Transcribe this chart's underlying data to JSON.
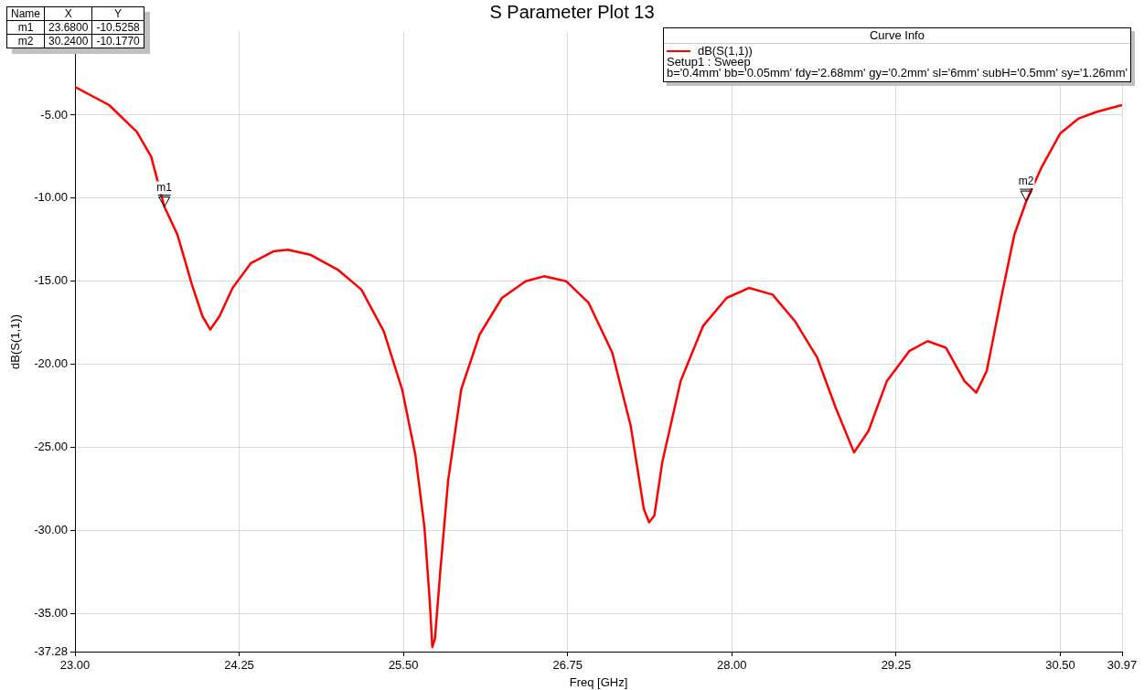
{
  "chart_data": {
    "type": "line",
    "title": "S Parameter Plot 13",
    "xlabel": "Freq [GHz]",
    "ylabel": "dB(S(1,1))",
    "legend_title": "Curve Info",
    "legend": "top right",
    "grid": true,
    "marker": "none",
    "line_style": "solid",
    "xlim": [
      23,
      30.97
    ],
    "ylim": [
      -37.28,
      0
    ],
    "xticks": [
      {
        "value": 23,
        "label": "23.00"
      },
      {
        "value": 24.25,
        "label": "24.25"
      },
      {
        "value": 25.5,
        "label": "25.50"
      },
      {
        "value": 26.75,
        "label": "26.75"
      },
      {
        "value": 28,
        "label": "28.00"
      },
      {
        "value": 29.25,
        "label": "29.25"
      },
      {
        "value": 30.5,
        "label": "30.50"
      },
      {
        "value": 30.97,
        "label": "30.97"
      }
    ],
    "yticks": [
      {
        "value": -37.28,
        "label": "-37.28"
      },
      {
        "value": -35,
        "label": "-35.00"
      },
      {
        "value": -30,
        "label": "-30.00"
      },
      {
        "value": -25,
        "label": "-25.00"
      },
      {
        "value": -20,
        "label": "-20.00"
      },
      {
        "value": -15,
        "label": "-15.00"
      },
      {
        "value": -10,
        "label": "-10.00"
      },
      {
        "value": -5,
        "label": "-5.00"
      }
    ],
    "series": [
      {
        "name": "dB(S(1,1))",
        "color": "#ff0000",
        "x": [
          23,
          23.26,
          23.47,
          23.58,
          23.68,
          23.78,
          23.89,
          23.97,
          24.03,
          24.1,
          24.2,
          24.34,
          24.51,
          24.62,
          24.79,
          25.0,
          25.18,
          25.35,
          25.49,
          25.59,
          25.66,
          25.7,
          25.72,
          25.74,
          25.78,
          25.84,
          25.94,
          26.08,
          26.25,
          26.43,
          26.57,
          26.74,
          26.91,
          27.09,
          27.23,
          27.33,
          27.37,
          27.41,
          27.47,
          27.61,
          27.78,
          27.96,
          28.13,
          28.31,
          28.48,
          28.65,
          28.79,
          28.93,
          29.04,
          29.18,
          29.35,
          29.49,
          29.63,
          29.77,
          29.86,
          29.94,
          30.05,
          30.15,
          30.24,
          30.36,
          30.5,
          30.64,
          30.78,
          30.97
        ],
        "values": [
          -3.3,
          -4.4,
          -6.0,
          -7.5,
          -10.5,
          -12.2,
          -15.2,
          -17.1,
          -17.9,
          -17.1,
          -15.4,
          -13.9,
          -13.2,
          -13.1,
          -13.4,
          -14.3,
          -15.5,
          -18.0,
          -21.5,
          -25.4,
          -29.8,
          -34.2,
          -37.0,
          -36.5,
          -32.5,
          -27.0,
          -21.5,
          -18.2,
          -16.0,
          -15.0,
          -14.7,
          -15.0,
          -16.3,
          -19.3,
          -23.7,
          -28.7,
          -29.5,
          -29.1,
          -25.9,
          -21.0,
          -17.7,
          -16.0,
          -15.4,
          -15.8,
          -17.4,
          -19.6,
          -22.6,
          -25.3,
          -24.0,
          -21.0,
          -19.2,
          -18.6,
          -19.0,
          -21.0,
          -21.7,
          -20.4,
          -16.0,
          -12.2,
          -10.2,
          -8.1,
          -6.1,
          -5.2,
          -4.8,
          -4.4
        ]
      }
    ],
    "annotations": [
      {
        "text": "m1",
        "x": 23.68,
        "y": -10.5258
      },
      {
        "text": "m2",
        "x": 30.24,
        "y": -10.177
      },
      "Name",
      "X",
      "Y",
      "m1",
      "23.6800",
      "-10.5258",
      "m2",
      "30.2400",
      "-10.1770",
      "Setup1 : Sweep",
      "b='0.4mm' bb='0.05mm' fdy='2.68mm' gy='0.2mm' sl='6mm' subH='0.5mm' sy='1.26mm'"
    ]
  }
}
